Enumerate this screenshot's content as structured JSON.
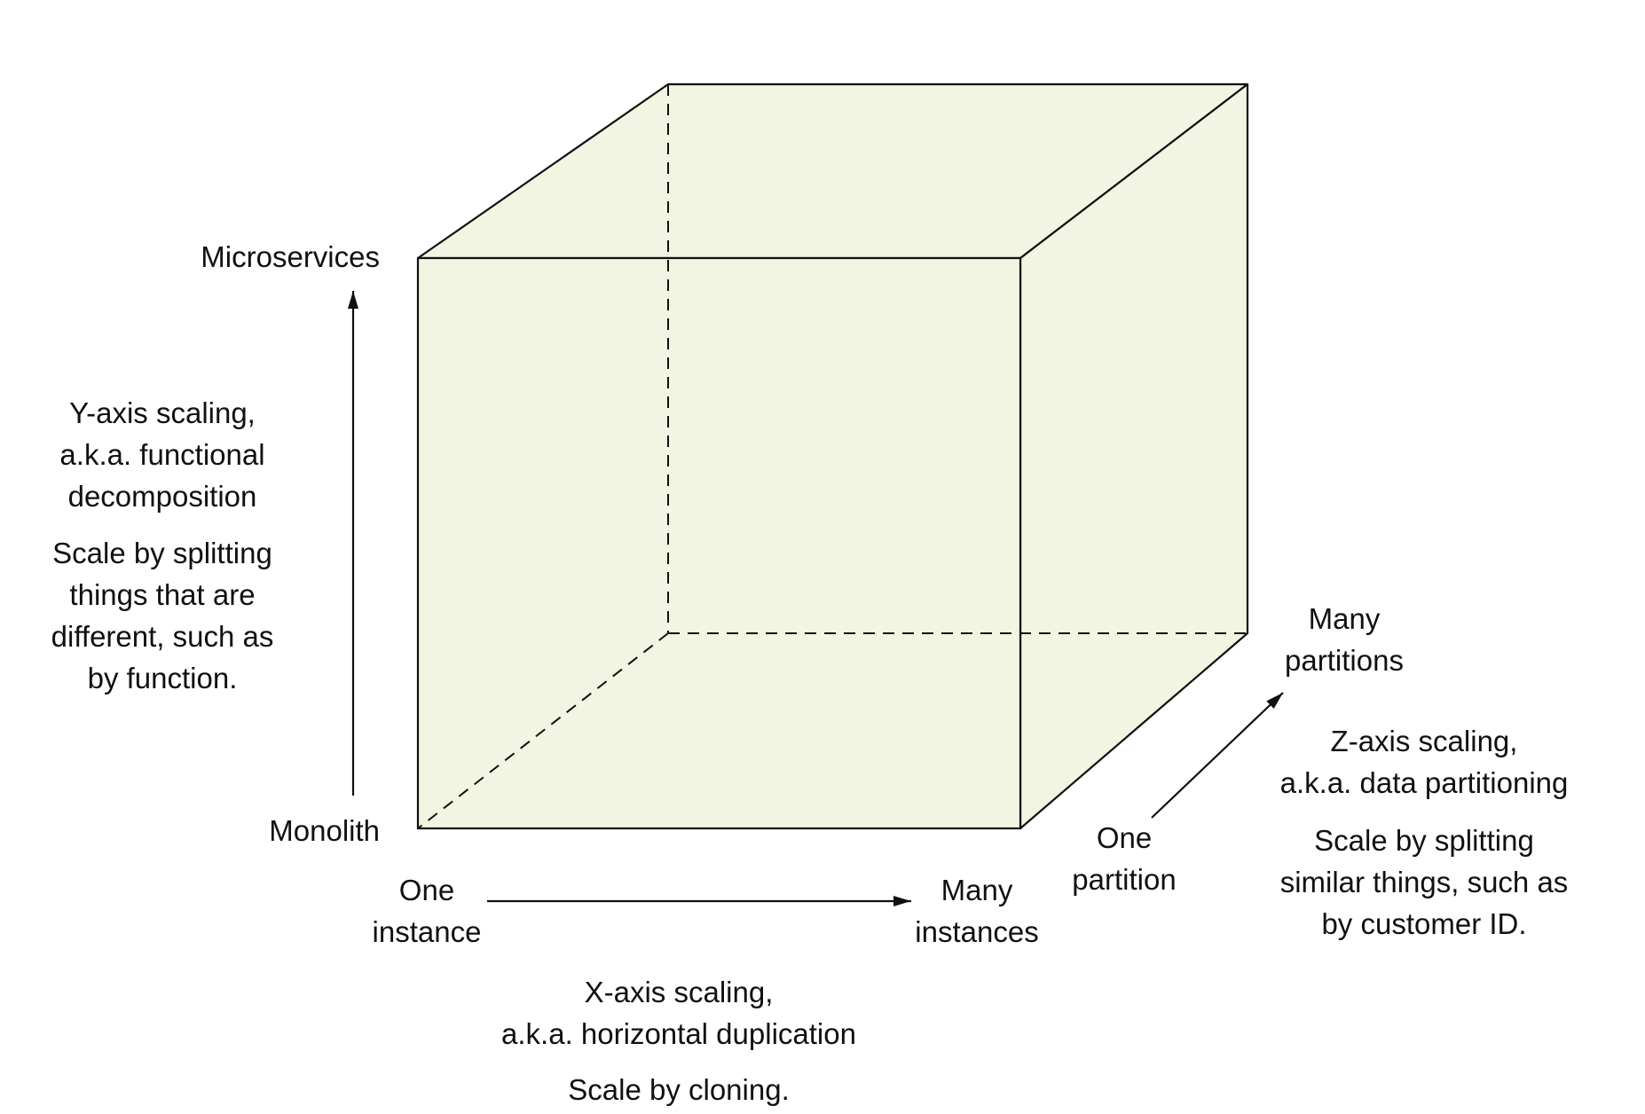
{
  "colors": {
    "cube_fill": "#f1f5e1",
    "stroke": "#111111",
    "background": "#ffffff"
  },
  "y_axis": {
    "top_label": "Microservices",
    "bottom_label": "Monolith",
    "title_lines": [
      "Y-axis scaling,",
      "a.k.a. functional",
      "decomposition"
    ],
    "description_lines": [
      "Scale by splitting",
      "things that are",
      "different, such as",
      "by function."
    ]
  },
  "x_axis": {
    "start_label_lines": [
      "One",
      "instance"
    ],
    "end_label_lines": [
      "Many",
      "instances"
    ],
    "title_lines": [
      "X-axis scaling,",
      "a.k.a. horizontal duplication"
    ],
    "description_lines": [
      "Scale by cloning."
    ]
  },
  "z_axis": {
    "start_label_lines": [
      "One",
      "partition"
    ],
    "end_label_lines": [
      "Many",
      "partitions"
    ],
    "title_lines": [
      "Z-axis scaling,",
      "a.k.a. data partitioning"
    ],
    "description_lines": [
      "Scale by splitting",
      "similar things, such as",
      "by customer ID."
    ]
  }
}
